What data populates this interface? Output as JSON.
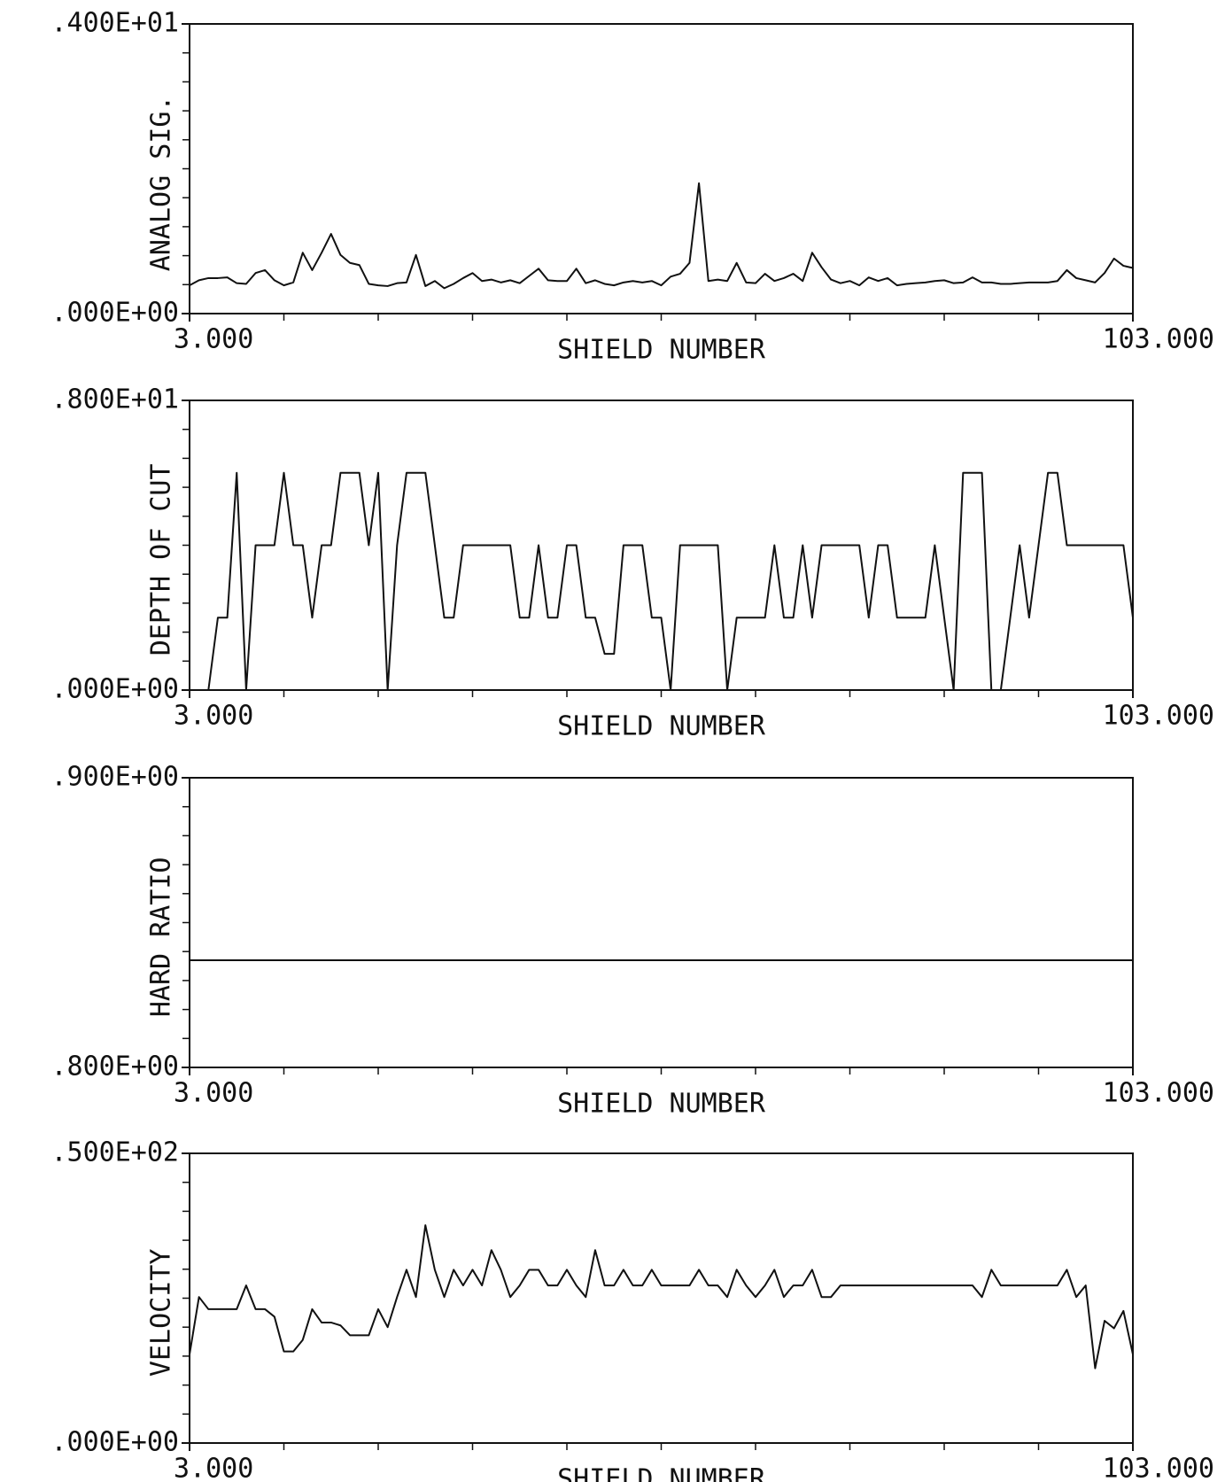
{
  "chart_data": [
    {
      "type": "line",
      "y_label": "ANALOG SIG.",
      "x_label": "SHIELD NUMBER",
      "color": "#111111",
      "xlim": [
        3,
        103
      ],
      "xticks": [
        {
          "value": 3,
          "label": "3.000"
        },
        {
          "value": 103,
          "label": "103.000"
        }
      ],
      "x_minor_ticks": [
        13,
        23,
        33,
        43,
        53,
        63,
        73,
        83,
        93
      ],
      "ylim": [
        0,
        4
      ],
      "yticks": [
        {
          "value": 0,
          "label": ".000E+00"
        },
        {
          "value": 4,
          "label": ".400E+01"
        }
      ],
      "y_minor_ticks": [
        0.4,
        0.8,
        1.2,
        1.6,
        2.0,
        2.4,
        2.8,
        3.2,
        3.6
      ],
      "x": [
        3,
        4,
        5,
        6,
        7,
        8,
        9,
        10,
        11,
        12,
        13,
        14,
        15,
        16,
        17,
        18,
        19,
        20,
        21,
        22,
        23,
        24,
        25,
        26,
        27,
        28,
        29,
        30,
        31,
        32,
        33,
        34,
        35,
        36,
        37,
        38,
        39,
        40,
        41,
        42,
        43,
        44,
        45,
        46,
        47,
        48,
        49,
        50,
        51,
        52,
        53,
        54,
        55,
        56,
        57,
        58,
        59,
        60,
        61,
        62,
        63,
        64,
        65,
        66,
        67,
        68,
        69,
        70,
        71,
        72,
        73,
        74,
        75,
        76,
        77,
        78,
        79,
        80,
        81,
        82,
        83,
        84,
        85,
        86,
        87,
        88,
        89,
        90,
        91,
        92,
        93,
        94,
        95,
        96,
        97,
        98,
        99,
        100,
        101,
        102,
        103
      ],
      "values": [
        0.39,
        0.46,
        0.49,
        0.49,
        0.5,
        0.42,
        0.41,
        0.56,
        0.6,
        0.46,
        0.39,
        0.43,
        0.84,
        0.6,
        0.84,
        1.1,
        0.81,
        0.7,
        0.67,
        0.41,
        0.39,
        0.38,
        0.42,
        0.43,
        0.81,
        0.38,
        0.45,
        0.35,
        0.41,
        0.49,
        0.56,
        0.45,
        0.47,
        0.43,
        0.46,
        0.42,
        0.52,
        0.62,
        0.46,
        0.45,
        0.45,
        0.62,
        0.42,
        0.46,
        0.41,
        0.39,
        0.43,
        0.45,
        0.43,
        0.45,
        0.39,
        0.51,
        0.55,
        0.7,
        1.8,
        0.45,
        0.47,
        0.45,
        0.7,
        0.43,
        0.42,
        0.55,
        0.45,
        0.49,
        0.55,
        0.45,
        0.84,
        0.64,
        0.47,
        0.42,
        0.45,
        0.39,
        0.5,
        0.45,
        0.49,
        0.39,
        0.41,
        0.42,
        0.43,
        0.45,
        0.46,
        0.42,
        0.43,
        0.5,
        0.43,
        0.43,
        0.41,
        0.41,
        0.42,
        0.43,
        0.43,
        0.43,
        0.45,
        0.6,
        0.49,
        0.46,
        0.43,
        0.56,
        0.76,
        0.66,
        0.63
      ]
    },
    {
      "type": "line",
      "y_label": "DEPTH OF CUT",
      "x_label": "SHIELD NUMBER",
      "color": "#111111",
      "xlim": [
        3,
        103
      ],
      "xticks": [
        {
          "value": 3,
          "label": "3.000"
        },
        {
          "value": 103,
          "label": "103.000"
        }
      ],
      "x_minor_ticks": [
        13,
        23,
        33,
        43,
        53,
        63,
        73,
        83,
        93
      ],
      "ylim": [
        0,
        8
      ],
      "yticks": [
        {
          "value": 0,
          "label": ".000E+00"
        },
        {
          "value": 8,
          "label": ".800E+01"
        }
      ],
      "y_minor_ticks": [
        0.8,
        1.6,
        2.4,
        3.2,
        4.0,
        4.8,
        5.6,
        6.4,
        7.2
      ],
      "x": [
        3,
        4,
        5,
        6,
        7,
        8,
        9,
        10,
        11,
        12,
        13,
        14,
        15,
        16,
        17,
        18,
        19,
        20,
        21,
        22,
        23,
        24,
        25,
        26,
        27,
        28,
        29,
        30,
        31,
        32,
        33,
        34,
        35,
        36,
        37,
        38,
        39,
        40,
        41,
        42,
        43,
        44,
        45,
        46,
        47,
        48,
        49,
        50,
        51,
        52,
        53,
        54,
        55,
        56,
        57,
        58,
        59,
        60,
        61,
        62,
        63,
        64,
        65,
        66,
        67,
        68,
        69,
        70,
        71,
        72,
        73,
        74,
        75,
        76,
        77,
        78,
        79,
        80,
        81,
        82,
        83,
        84,
        85,
        86,
        87,
        88,
        89,
        90,
        91,
        92,
        93,
        94,
        95,
        96,
        97,
        98,
        99,
        100,
        101,
        102,
        103
      ],
      "values": [
        0,
        0,
        0,
        2,
        2,
        6,
        0,
        4,
        4,
        4,
        6,
        4,
        4,
        2,
        4,
        4,
        6,
        6,
        6,
        4,
        6,
        0,
        4,
        6,
        6,
        6,
        4,
        2,
        2,
        4,
        4,
        4,
        4,
        4,
        4,
        2,
        2,
        4,
        2,
        2,
        4,
        4,
        2,
        2,
        1,
        1,
        4,
        4,
        4,
        2,
        2,
        0,
        4,
        4,
        4,
        4,
        4,
        0,
        2,
        2,
        2,
        2,
        4,
        2,
        2,
        4,
        2,
        4,
        4,
        4,
        4,
        4,
        2,
        4,
        4,
        2,
        2,
        2,
        2,
        4,
        2,
        0,
        6,
        6,
        6,
        0,
        0,
        2,
        4,
        2,
        4,
        6,
        6,
        4,
        4,
        4,
        4,
        4,
        4,
        4,
        2
      ]
    },
    {
      "type": "line",
      "y_label": "HARD RATIO",
      "x_label": "SHIELD NUMBER",
      "color": "#111111",
      "xlim": [
        3,
        103
      ],
      "xticks": [
        {
          "value": 3,
          "label": "3.000"
        },
        {
          "value": 103,
          "label": "103.000"
        }
      ],
      "x_minor_ticks": [
        13,
        23,
        33,
        43,
        53,
        63,
        73,
        83,
        93
      ],
      "ylim": [
        0.8,
        0.9
      ],
      "yticks": [
        {
          "value": 0.8,
          "label": ".800E+00"
        },
        {
          "value": 0.9,
          "label": ".900E+00"
        }
      ],
      "y_minor_ticks": [
        0.81,
        0.82,
        0.83,
        0.84,
        0.85,
        0.86,
        0.87,
        0.88,
        0.89
      ],
      "x": [
        3,
        4,
        5,
        6,
        7,
        8,
        9,
        10,
        11,
        12,
        13,
        14,
        15,
        16,
        17,
        18,
        19,
        20,
        21,
        22,
        23,
        24,
        25,
        26,
        27,
        28,
        29,
        30,
        31,
        32,
        33,
        34,
        35,
        36,
        37,
        38,
        39,
        40,
        41,
        42,
        43,
        44,
        45,
        46,
        47,
        48,
        49,
        50,
        51,
        52,
        53,
        54,
        55,
        56,
        57,
        58,
        59,
        60,
        61,
        62,
        63,
        64,
        65,
        66,
        67,
        68,
        69,
        70,
        71,
        72,
        73,
        74,
        75,
        76,
        77,
        78,
        79,
        80,
        81,
        82,
        83,
        84,
        85,
        86,
        87,
        88,
        89,
        90,
        91,
        92,
        93,
        94,
        95,
        96,
        97,
        98,
        99,
        100,
        101,
        102,
        103
      ],
      "values": [
        0.837,
        0.837,
        0.837,
        0.837,
        0.837,
        0.837,
        0.837,
        0.837,
        0.837,
        0.837,
        0.837,
        0.837,
        0.837,
        0.837,
        0.837,
        0.837,
        0.837,
        0.837,
        0.837,
        0.837,
        0.837,
        0.837,
        0.837,
        0.837,
        0.837,
        0.837,
        0.837,
        0.837,
        0.837,
        0.837,
        0.837,
        0.837,
        0.837,
        0.837,
        0.837,
        0.837,
        0.837,
        0.837,
        0.837,
        0.837,
        0.837,
        0.837,
        0.837,
        0.837,
        0.837,
        0.837,
        0.837,
        0.837,
        0.837,
        0.837,
        0.837,
        0.837,
        0.837,
        0.837,
        0.837,
        0.837,
        0.837,
        0.837,
        0.837,
        0.837,
        0.837,
        0.837,
        0.837,
        0.837,
        0.837,
        0.837,
        0.837,
        0.837,
        0.837,
        0.837,
        0.837,
        0.837,
        0.837,
        0.837,
        0.837,
        0.837,
        0.837,
        0.837,
        0.837,
        0.837,
        0.837,
        0.837,
        0.837,
        0.837,
        0.837,
        0.837,
        0.837,
        0.837,
        0.837,
        0.837,
        0.837,
        0.837,
        0.837,
        0.837,
        0.837,
        0.837,
        0.837,
        0.837,
        0.837,
        0.837,
        0.837
      ]
    },
    {
      "type": "line",
      "y_label": "VELOCITY",
      "x_label": "SHIELD NUMBER",
      "color": "#111111",
      "xlim": [
        3,
        103
      ],
      "xticks": [
        {
          "value": 3,
          "label": "3.000"
        },
        {
          "value": 103,
          "label": "103.000"
        }
      ],
      "x_minor_ticks": [
        13,
        23,
        33,
        43,
        53,
        63,
        73,
        83,
        93
      ],
      "ylim": [
        0,
        50
      ],
      "yticks": [
        {
          "value": 0,
          "label": ".000E+00"
        },
        {
          "value": 50,
          "label": ".500E+02"
        }
      ],
      "y_minor_ticks": [
        5,
        10,
        15,
        20,
        25,
        30,
        35,
        40,
        45
      ],
      "x": [
        3,
        4,
        5,
        6,
        7,
        8,
        9,
        10,
        11,
        12,
        13,
        14,
        15,
        16,
        17,
        18,
        19,
        20,
        21,
        22,
        23,
        24,
        25,
        26,
        27,
        28,
        29,
        30,
        31,
        32,
        33,
        34,
        35,
        36,
        37,
        38,
        39,
        40,
        41,
        42,
        43,
        44,
        45,
        46,
        47,
        48,
        49,
        50,
        51,
        52,
        53,
        54,
        55,
        56,
        57,
        58,
        59,
        60,
        61,
        62,
        63,
        64,
        65,
        66,
        67,
        68,
        69,
        70,
        71,
        72,
        73,
        74,
        75,
        76,
        77,
        78,
        79,
        80,
        81,
        82,
        83,
        84,
        85,
        86,
        87,
        88,
        89,
        90,
        91,
        92,
        93,
        94,
        95,
        96,
        97,
        98,
        99,
        100,
        101,
        102,
        103
      ],
      "values": [
        15.3,
        25.2,
        23.1,
        23.1,
        23.1,
        23.1,
        27.2,
        23.1,
        23.1,
        21.8,
        15.8,
        15.8,
        17.8,
        23.1,
        20.8,
        20.8,
        20.3,
        18.6,
        18.6,
        18.6,
        23.1,
        20.0,
        25.2,
        29.9,
        25.2,
        37.6,
        29.9,
        25.2,
        29.9,
        27.2,
        29.9,
        27.2,
        33.3,
        29.9,
        25.2,
        27.2,
        29.9,
        29.9,
        27.2,
        27.2,
        29.9,
        27.2,
        25.2,
        33.3,
        27.2,
        27.2,
        29.9,
        27.2,
        27.2,
        29.9,
        27.2,
        27.2,
        27.2,
        27.2,
        29.9,
        27.2,
        27.2,
        25.2,
        29.9,
        27.2,
        25.2,
        27.2,
        29.9,
        25.2,
        27.2,
        27.2,
        29.9,
        25.2,
        25.2,
        27.2,
        27.2,
        27.2,
        27.2,
        27.2,
        27.2,
        27.2,
        27.2,
        27.2,
        27.2,
        27.2,
        27.2,
        27.2,
        27.2,
        27.2,
        25.2,
        29.9,
        27.2,
        27.2,
        27.2,
        27.2,
        27.2,
        27.2,
        27.2,
        29.9,
        25.2,
        27.2,
        12.9,
        21.1,
        19.8,
        22.8,
        15.3
      ]
    }
  ]
}
